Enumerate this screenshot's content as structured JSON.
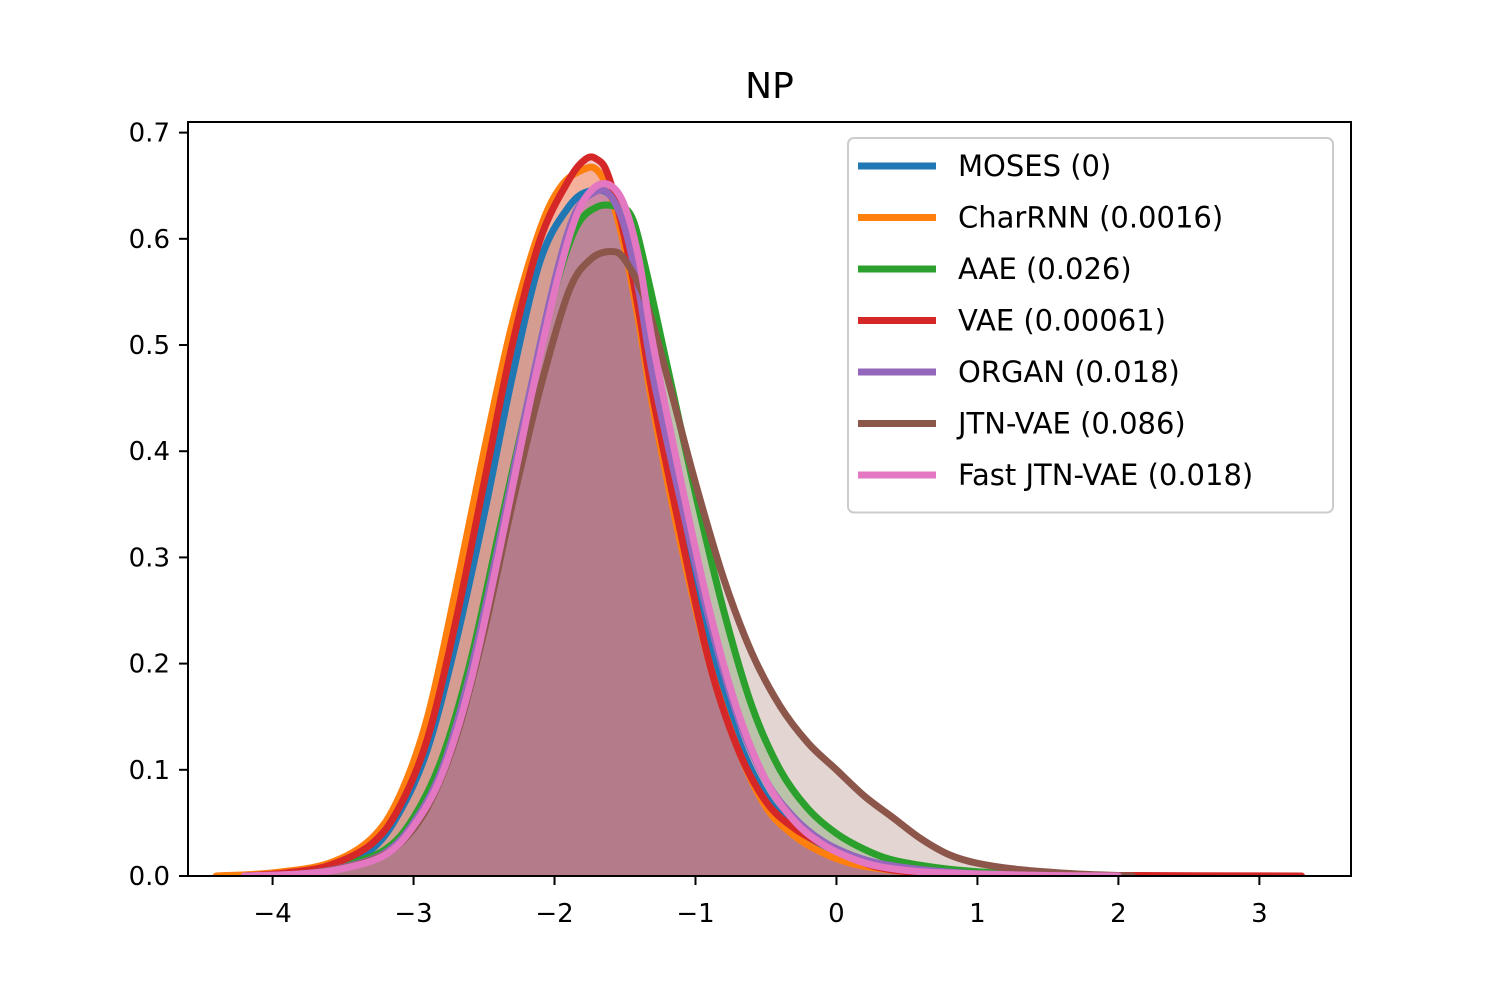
{
  "chart_data": {
    "type": "area",
    "title": "NP",
    "xlabel": "",
    "ylabel": "",
    "xlim": [
      -4.6,
      3.65
    ],
    "ylim": [
      0,
      0.71
    ],
    "xticks": [
      -4,
      -3,
      -2,
      -1,
      0,
      1,
      2,
      3
    ],
    "xtick_labels": [
      "−4",
      "−3",
      "−2",
      "−1",
      "0",
      "1",
      "2",
      "3"
    ],
    "yticks": [
      0.0,
      0.1,
      0.2,
      0.3,
      0.4,
      0.5,
      0.6,
      0.7
    ],
    "ytick_labels": [
      "0.0",
      "0.1",
      "0.2",
      "0.3",
      "0.4",
      "0.5",
      "0.6",
      "0.7"
    ],
    "grid": false,
    "legend_position": "top-right",
    "series": [
      {
        "name": "MOSES (0)",
        "color": "#1f77b4",
        "x": [
          -4.3,
          -4.0,
          -3.6,
          -3.3,
          -3.1,
          -2.9,
          -2.7,
          -2.5,
          -2.3,
          -2.1,
          -1.9,
          -1.75,
          -1.6,
          -1.5,
          -1.4,
          -1.3,
          -1.1,
          -0.9,
          -0.7,
          -0.5,
          -0.3,
          -0.1,
          0.1,
          0.3,
          0.6,
          1.0,
          1.5,
          2.0
        ],
        "y": [
          0.0,
          0.002,
          0.008,
          0.025,
          0.06,
          0.12,
          0.22,
          0.34,
          0.47,
          0.58,
          0.63,
          0.645,
          0.64,
          0.6,
          0.53,
          0.45,
          0.33,
          0.22,
          0.13,
          0.075,
          0.045,
          0.025,
          0.014,
          0.008,
          0.004,
          0.002,
          0.001,
          0.0
        ]
      },
      {
        "name": "CharRNN (0.0016)",
        "color": "#ff7f0e",
        "x": [
          -4.4,
          -4.0,
          -3.6,
          -3.3,
          -3.1,
          -2.9,
          -2.7,
          -2.5,
          -2.3,
          -2.1,
          -1.95,
          -1.8,
          -1.7,
          -1.6,
          -1.5,
          -1.4,
          -1.3,
          -1.1,
          -0.9,
          -0.7,
          -0.5,
          -0.3,
          -0.1,
          0.1,
          0.3,
          0.6,
          1.0,
          1.5,
          2.0
        ],
        "y": [
          0.0,
          0.003,
          0.012,
          0.035,
          0.075,
          0.15,
          0.27,
          0.4,
          0.52,
          0.61,
          0.65,
          0.665,
          0.665,
          0.64,
          0.59,
          0.52,
          0.44,
          0.31,
          0.2,
          0.12,
          0.065,
          0.038,
          0.022,
          0.012,
          0.007,
          0.003,
          0.001,
          0.0005,
          0.0
        ]
      },
      {
        "name": "AAE (0.026)",
        "color": "#2ca02c",
        "x": [
          -4.2,
          -3.8,
          -3.5,
          -3.2,
          -3.0,
          -2.8,
          -2.6,
          -2.4,
          -2.2,
          -2.0,
          -1.85,
          -1.7,
          -1.55,
          -1.45,
          -1.35,
          -1.2,
          -1.0,
          -0.8,
          -0.6,
          -0.4,
          -0.2,
          0.0,
          0.2,
          0.4,
          0.7,
          1.0,
          1.5,
          2.0
        ],
        "y": [
          0.0,
          0.003,
          0.01,
          0.025,
          0.055,
          0.11,
          0.2,
          0.32,
          0.44,
          0.55,
          0.61,
          0.63,
          0.63,
          0.62,
          0.57,
          0.48,
          0.36,
          0.25,
          0.16,
          0.1,
          0.063,
          0.04,
          0.025,
          0.015,
          0.008,
          0.004,
          0.001,
          0.0
        ]
      },
      {
        "name": "VAE (0.00061)",
        "color": "#d62728",
        "x": [
          -4.2,
          -3.9,
          -3.6,
          -3.3,
          -3.1,
          -2.9,
          -2.7,
          -2.5,
          -2.3,
          -2.1,
          -1.9,
          -1.78,
          -1.7,
          -1.62,
          -1.5,
          -1.4,
          -1.3,
          -1.1,
          -0.9,
          -0.7,
          -0.5,
          -0.3,
          -0.1,
          0.1,
          0.3,
          0.6,
          1.0,
          2.0,
          3.3
        ],
        "y": [
          0.0,
          0.003,
          0.01,
          0.03,
          0.065,
          0.13,
          0.24,
          0.37,
          0.5,
          0.6,
          0.655,
          0.675,
          0.675,
          0.66,
          0.6,
          0.53,
          0.45,
          0.32,
          0.2,
          0.12,
          0.07,
          0.045,
          0.03,
          0.018,
          0.008,
          0.003,
          0.001,
          0.0005,
          0.0
        ]
      },
      {
        "name": "ORGAN (0.018)",
        "color": "#9467bd",
        "x": [
          -4.2,
          -3.8,
          -3.5,
          -3.2,
          -3.0,
          -2.8,
          -2.6,
          -2.4,
          -2.2,
          -2.0,
          -1.85,
          -1.7,
          -1.6,
          -1.5,
          -1.4,
          -1.3,
          -1.1,
          -0.9,
          -0.7,
          -0.5,
          -0.3,
          -0.1,
          0.1,
          0.3,
          0.6,
          1.0,
          1.5,
          2.0
        ],
        "y": [
          0.0,
          0.002,
          0.008,
          0.022,
          0.05,
          0.1,
          0.19,
          0.31,
          0.44,
          0.56,
          0.625,
          0.645,
          0.64,
          0.61,
          0.55,
          0.47,
          0.35,
          0.24,
          0.15,
          0.09,
          0.055,
          0.033,
          0.02,
          0.012,
          0.006,
          0.002,
          0.001,
          0.0
        ]
      },
      {
        "name": "JTN-VAE (0.086)",
        "color": "#8c564b",
        "x": [
          -4.0,
          -3.6,
          -3.3,
          -3.1,
          -2.9,
          -2.7,
          -2.5,
          -2.3,
          -2.1,
          -1.9,
          -1.75,
          -1.6,
          -1.5,
          -1.35,
          -1.2,
          -1.0,
          -0.8,
          -0.6,
          -0.4,
          -0.2,
          0.0,
          0.2,
          0.4,
          0.6,
          0.8,
          1.0,
          1.3,
          1.7,
          2.1
        ],
        "y": [
          0.0,
          0.005,
          0.015,
          0.03,
          0.065,
          0.13,
          0.23,
          0.35,
          0.46,
          0.55,
          0.58,
          0.588,
          0.58,
          0.54,
          0.47,
          0.37,
          0.28,
          0.21,
          0.16,
          0.125,
          0.1,
          0.075,
          0.055,
          0.035,
          0.02,
          0.012,
          0.006,
          0.002,
          0.0
        ]
      },
      {
        "name": "Fast JTN-VAE (0.018)",
        "color": "#e377c2",
        "x": [
          -4.2,
          -3.8,
          -3.5,
          -3.2,
          -3.0,
          -2.8,
          -2.6,
          -2.4,
          -2.2,
          -2.0,
          -1.85,
          -1.72,
          -1.6,
          -1.5,
          -1.4,
          -1.3,
          -1.1,
          -0.9,
          -0.7,
          -0.5,
          -0.3,
          -0.1,
          0.1,
          0.3,
          0.6,
          1.0,
          1.5,
          2.0
        ],
        "y": [
          0.0,
          0.002,
          0.007,
          0.02,
          0.047,
          0.095,
          0.18,
          0.3,
          0.43,
          0.55,
          0.62,
          0.648,
          0.65,
          0.63,
          0.58,
          0.5,
          0.37,
          0.25,
          0.155,
          0.09,
          0.052,
          0.03,
          0.017,
          0.009,
          0.004,
          0.002,
          0.0005,
          0.0
        ]
      }
    ]
  }
}
